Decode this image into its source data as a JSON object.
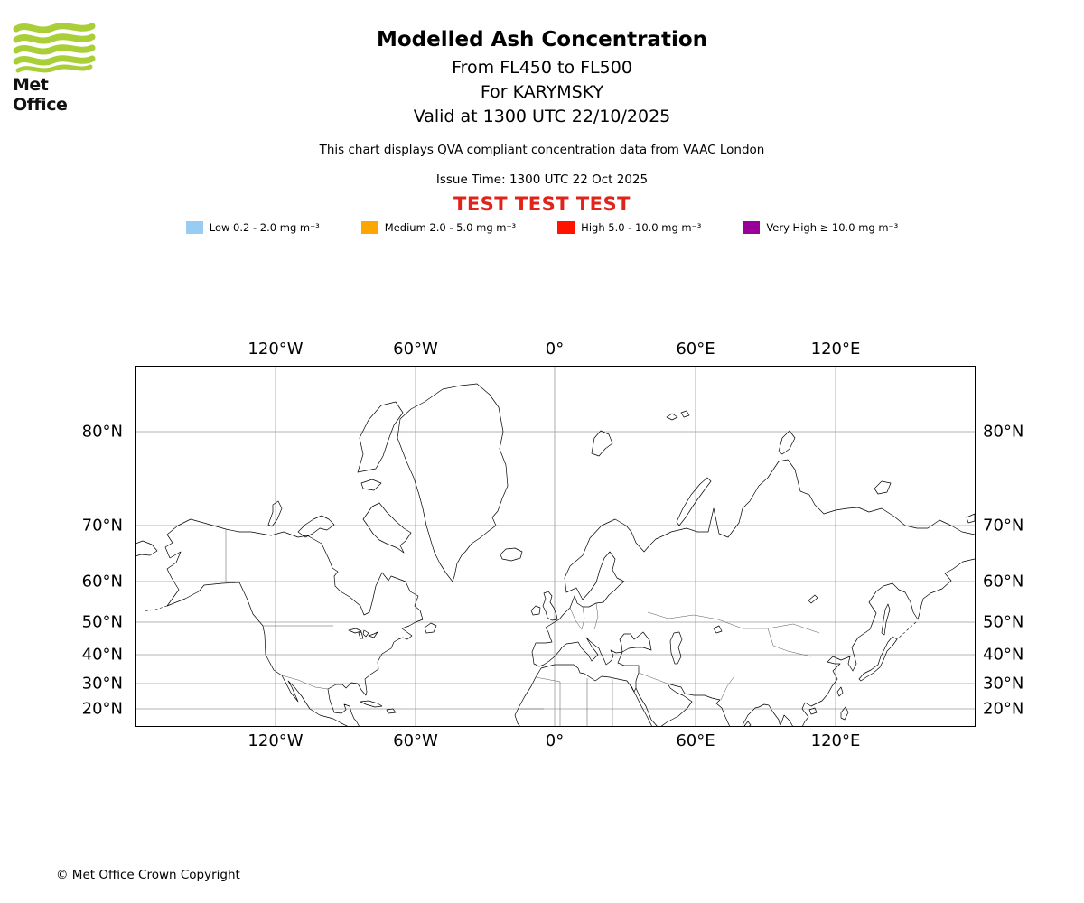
{
  "header": {
    "logo_text": "Met Office",
    "title": "Modelled Ash Concentration",
    "subtitles": [
      "From FL450 to FL500",
      "For KARYMSKY",
      "Valid at 1300 UTC 22/10/2025"
    ],
    "compliance_note": "This chart displays QVA compliant concentration data from VAAC London",
    "issue_time": "Issue Time: 1300 UTC 22 Oct 2025",
    "test_banner": "TEST TEST TEST",
    "test_banner_color": "#E2231A",
    "logo_color": "#A9CE38"
  },
  "legend": {
    "items": [
      {
        "label": "Low 0.2 - 2.0 mg m⁻³",
        "color": "#99CCF2"
      },
      {
        "label": "Medium 2.0 - 5.0 mg m⁻³",
        "color": "#FFA500"
      },
      {
        "label": "High 5.0 - 10.0 mg m⁻³",
        "color": "#FF1400"
      },
      {
        "label": "Very High  ≥  10.0 mg m⁻³",
        "color": "#990099"
      }
    ]
  },
  "map": {
    "lon_labels": [
      "120°W",
      "60°W",
      "0°",
      "60°E",
      "120°E"
    ],
    "lat_labels": [
      "80°N",
      "70°N",
      "60°N",
      "50°N",
      "40°N",
      "30°N",
      "20°N"
    ]
  },
  "footer": {
    "copyright": "© Met Office Crown Copyright"
  }
}
